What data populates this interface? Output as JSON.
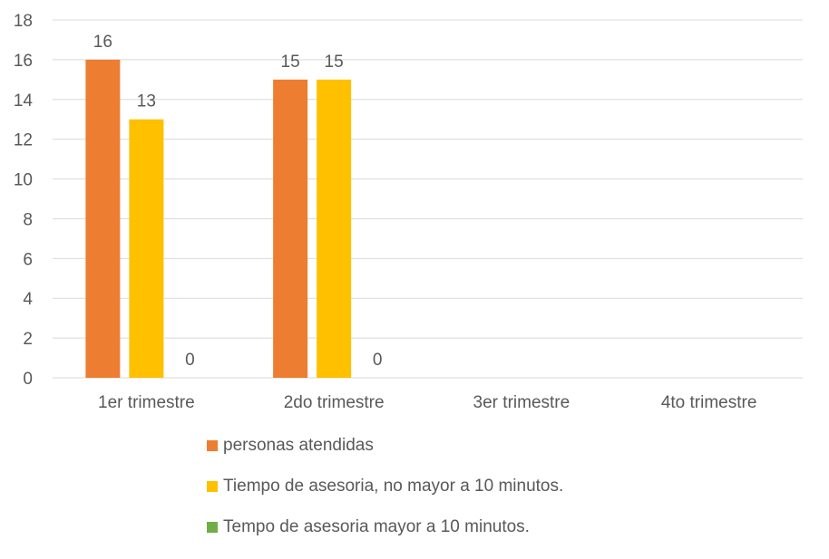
{
  "chart_data": {
    "type": "bar",
    "title": "",
    "xlabel": "",
    "ylabel": "",
    "categories": [
      "1er trimestre",
      "2do trimestre",
      "3er trimestre",
      "4to trimestre"
    ],
    "series": [
      {
        "name": "personas atendidas",
        "color": "#ED7D31",
        "values": [
          16,
          15,
          null,
          null
        ],
        "labels": [
          "16",
          "15",
          "",
          ""
        ]
      },
      {
        "name": "Tiempo de asesoria, no mayor a 10 minutos.",
        "color": "#FFC000",
        "values": [
          13,
          15,
          null,
          null
        ],
        "labels": [
          "13",
          "15",
          "",
          ""
        ]
      },
      {
        "name": "Tempo de asesoria  mayor a 10 minutos.",
        "color": "#70AD47",
        "values": [
          0,
          0,
          null,
          null
        ],
        "labels": [
          "0",
          "0",
          "",
          ""
        ]
      }
    ],
    "ylim": [
      0,
      18
    ],
    "yticks": [
      "0",
      "2",
      "4",
      "6",
      "8",
      "10",
      "12",
      "14",
      "16",
      "18"
    ],
    "grid": true,
    "legend_position": "bottom"
  }
}
